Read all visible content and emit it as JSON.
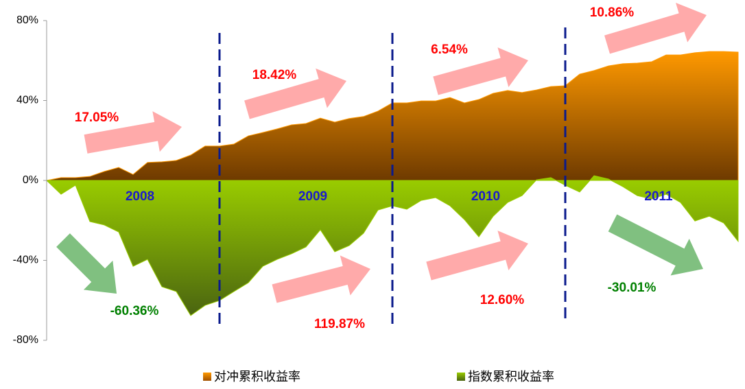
{
  "chart_data": {
    "type": "area",
    "categories": [
      null,
      null,
      null,
      null,
      null,
      null,
      "2008",
      null,
      null,
      null,
      null,
      null,
      null,
      null,
      null,
      null,
      null,
      null,
      "2009",
      null,
      null,
      null,
      null,
      null,
      null,
      null,
      null,
      null,
      null,
      null,
      "2010",
      null,
      null,
      null,
      null,
      null,
      null,
      null,
      null,
      null,
      null,
      null,
      "2011",
      null,
      null,
      null,
      null,
      null,
      null
    ],
    "series": [
      {
        "name": "对冲累积收益率",
        "color": "#ff9900",
        "values": [
          0,
          1.4,
          1.4,
          2,
          4.5,
          6.5,
          3,
          9,
          9.3,
          10,
          12.7,
          17.2,
          17.2,
          18.2,
          22.3,
          24,
          25.8,
          27.8,
          28.5,
          31.2,
          29.2,
          31,
          32,
          34.7,
          38.8,
          38.8,
          39.8,
          39.8,
          41.5,
          38.8,
          40.5,
          43.6,
          45,
          44,
          45.3,
          47,
          47.4,
          53.2,
          55,
          57.3,
          58.4,
          58.7,
          59.4,
          62.8,
          62.8,
          63.9,
          64.5,
          64.5,
          64.2
        ]
      },
      {
        "name": "指数累积收益率",
        "color": "#99cc00",
        "values": [
          0,
          -6.9,
          -2.4,
          -20.6,
          -22.3,
          -25.8,
          -43,
          -39.5,
          -53.2,
          -55.6,
          -67.6,
          -62.5,
          -60.1,
          -55.6,
          -51.2,
          -43,
          -39.5,
          -36.7,
          -33.3,
          -24.7,
          -35.7,
          -32.6,
          -26.4,
          -14.8,
          -12.7,
          -14.4,
          -10,
          -8.6,
          -12.7,
          -19.6,
          -28.2,
          -17.9,
          -11,
          -7.6,
          0.3,
          1.4,
          -2.4,
          -5.8,
          2.4,
          0.7,
          -3.1,
          -7.6,
          -9.3,
          -6.9,
          -11,
          -20.3,
          -17.9,
          -21.3,
          -30.5
        ]
      }
    ],
    "ylim": [
      -80,
      80
    ],
    "yticks": [
      {
        "value": -80,
        "label": "-80%"
      },
      {
        "value": -40,
        "label": "-40%"
      },
      {
        "value": 0,
        "label": "0%"
      },
      {
        "value": 40,
        "label": "40%"
      },
      {
        "value": 80,
        "label": "80%"
      }
    ],
    "year_dividers": [
      12,
      24,
      36
    ],
    "annotations": [
      {
        "text": "17.05%",
        "color": "#ff0000"
      },
      {
        "text": "18.42%",
        "color": "#ff0000"
      },
      {
        "text": "6.54%",
        "color": "#ff0000"
      },
      {
        "text": "10.86%",
        "color": "#ff0000"
      },
      {
        "text": "-60.36%",
        "color": "#008000"
      },
      {
        "text": "119.87%",
        "color": "#ff0000"
      },
      {
        "text": "12.60%",
        "color": "#ff0000"
      },
      {
        "text": "-30.01%",
        "color": "#008000"
      }
    ]
  }
}
